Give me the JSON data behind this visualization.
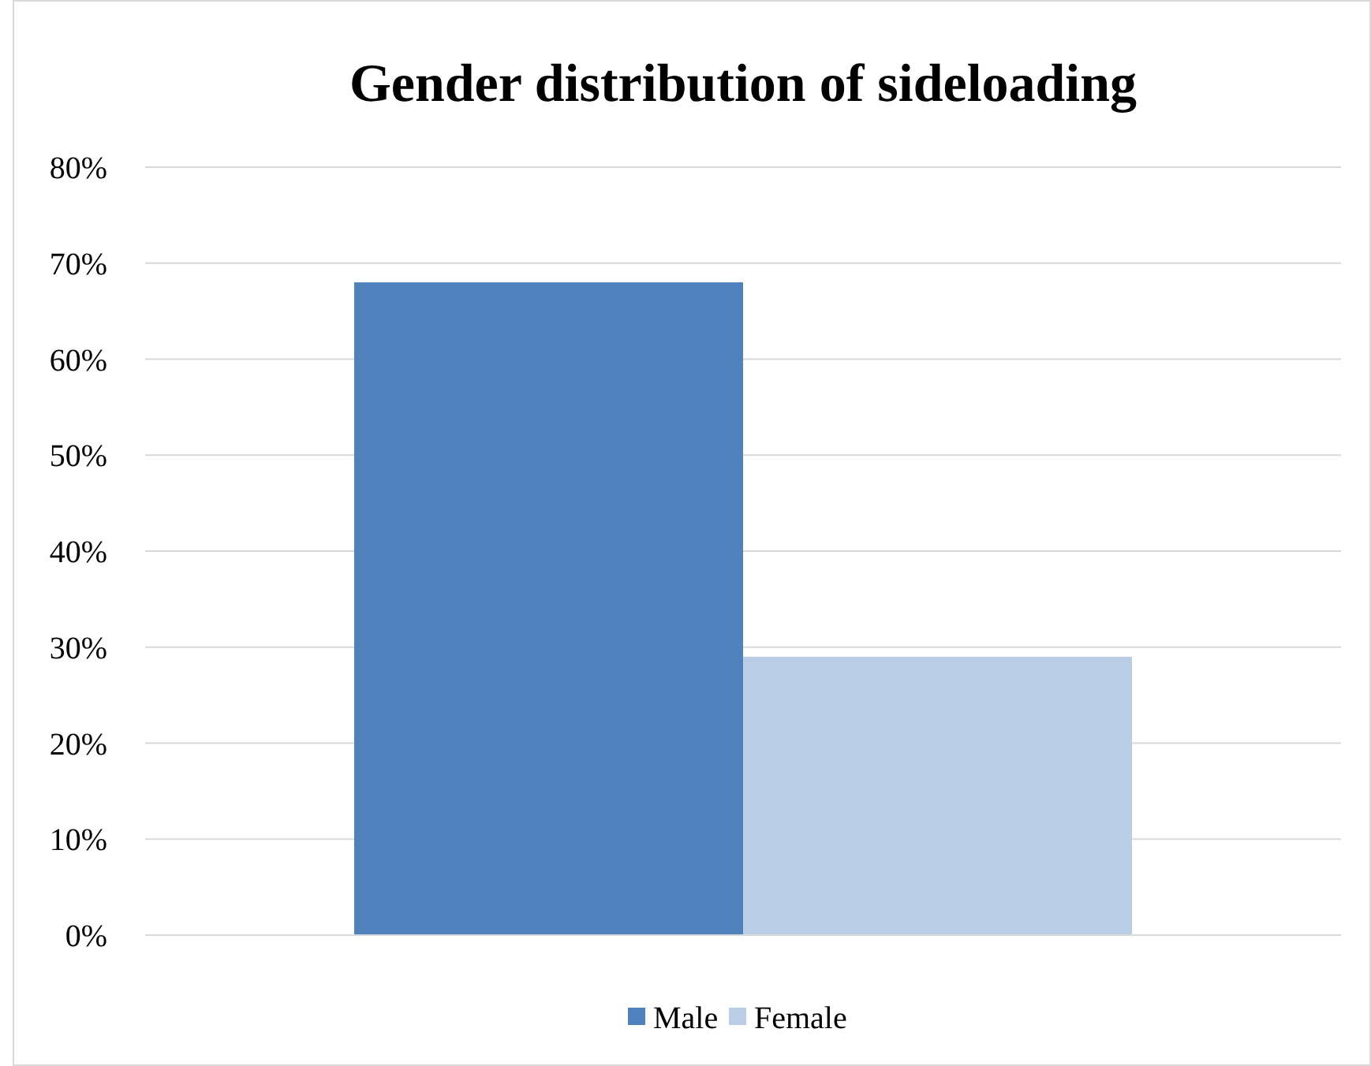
{
  "chart_data": {
    "type": "bar",
    "title": "Gender distribution of sideloading",
    "categories": [
      null
    ],
    "series": [
      {
        "name": "Male",
        "color": "#4f81bd",
        "values": [
          68
        ]
      },
      {
        "name": "Female",
        "color": "#b9cde5",
        "values": [
          29
        ]
      }
    ],
    "ylim": [
      0,
      80
    ],
    "yticks": [
      {
        "value": 0,
        "label": "0%"
      },
      {
        "value": 10,
        "label": "10%"
      },
      {
        "value": 20,
        "label": "20%"
      },
      {
        "value": 30,
        "label": "30%"
      },
      {
        "value": 40,
        "label": "40%"
      },
      {
        "value": 50,
        "label": "50%"
      },
      {
        "value": 60,
        "label": "60%"
      },
      {
        "value": 70,
        "label": "70%"
      },
      {
        "value": 80,
        "label": "80%"
      }
    ],
    "grid": "y",
    "legend": "bottom"
  }
}
